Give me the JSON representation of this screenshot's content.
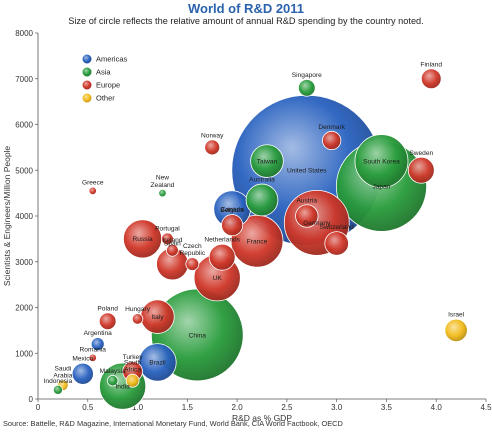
{
  "chart_data": {
    "type": "scatter",
    "title": "World of R&D 2011",
    "subtitle": "Size of circle reflects the relative amount of annual R&D spending by the country noted.",
    "xlabel": "R&D as % GDP",
    "ylabel": "Scientists & Engineers/Million People",
    "xlim": [
      0,
      4.5
    ],
    "ylim": [
      0,
      8000
    ],
    "xticks": [
      "0",
      "0.5",
      "1.0",
      "1.5",
      "2.0",
      "2.5",
      "3.0",
      "3.5",
      "4.0",
      "4.5"
    ],
    "yticks": [
      "0",
      "1000",
      "2000",
      "3000",
      "4000",
      "5000",
      "6000",
      "7000",
      "8000"
    ],
    "grid": false,
    "legend_position": "top-left",
    "regions": [
      {
        "name": "Americas",
        "color": "#2b63c0"
      },
      {
        "name": "Asia",
        "color": "#2a9d3d"
      },
      {
        "name": "Europe",
        "color": "#d0382a"
      },
      {
        "name": "Other",
        "color": "#f2bc1c"
      }
    ],
    "points": [
      {
        "label": "United States",
        "x": 2.7,
        "y": 5000,
        "size": 400,
        "region": "Americas"
      },
      {
        "label": "China",
        "x": 1.6,
        "y": 1400,
        "size": 150,
        "region": "Asia"
      },
      {
        "label": "Japan",
        "x": 3.45,
        "y": 4650,
        "size": 145,
        "region": "Asia"
      },
      {
        "label": "Germany",
        "x": 2.8,
        "y": 3850,
        "size": 75,
        "region": "Europe"
      },
      {
        "label": "South Korea",
        "x": 3.45,
        "y": 5200,
        "size": 50,
        "region": "Asia"
      },
      {
        "label": "France",
        "x": 2.2,
        "y": 3450,
        "size": 48,
        "region": "Europe"
      },
      {
        "label": "UK",
        "x": 1.8,
        "y": 2650,
        "size": 38,
        "region": "Europe"
      },
      {
        "label": "India",
        "x": 0.85,
        "y": 280,
        "size": 38,
        "region": "Asia"
      },
      {
        "label": "Russia",
        "x": 1.05,
        "y": 3500,
        "size": 26,
        "region": "Europe"
      },
      {
        "label": "Brazil",
        "x": 1.2,
        "y": 800,
        "size": 25,
        "region": "Americas"
      },
      {
        "label": "Canada",
        "x": 1.95,
        "y": 4150,
        "size": 24,
        "region": "Americas"
      },
      {
        "label": "Italy",
        "x": 1.2,
        "y": 1800,
        "size": 20,
        "region": "Europe"
      },
      {
        "label": "Taiwan",
        "x": 2.3,
        "y": 5200,
        "size": 19,
        "region": "Asia"
      },
      {
        "label": "Spain",
        "x": 1.35,
        "y": 2950,
        "size": 18,
        "region": "Europe"
      },
      {
        "label": "Australia",
        "x": 2.25,
        "y": 4350,
        "size": 18,
        "region": "Asia"
      },
      {
        "label": "Sweden",
        "x": 3.85,
        "y": 5000,
        "size": 12,
        "region": "Europe"
      },
      {
        "label": "Netherlands",
        "x": 1.85,
        "y": 3100,
        "size": 12,
        "region": "Europe"
      },
      {
        "label": "Switzerland",
        "x": 3.0,
        "y": 3400,
        "size": 10,
        "region": "Europe"
      },
      {
        "label": "Mexico",
        "x": 0.45,
        "y": 550,
        "size": 8,
        "region": "Americas"
      },
      {
        "label": "Austria",
        "x": 2.7,
        "y": 4000,
        "size": 9,
        "region": "Europe"
      },
      {
        "label": "Belgium",
        "x": 1.95,
        "y": 3800,
        "size": 8,
        "region": "Europe"
      },
      {
        "label": "Israel",
        "x": 4.2,
        "y": 1500,
        "size": 9,
        "region": "Other"
      },
      {
        "label": "Finland",
        "x": 3.95,
        "y": 7000,
        "size": 7,
        "region": "Europe"
      },
      {
        "label": "Denmark",
        "x": 2.95,
        "y": 5650,
        "size": 6,
        "region": "Europe"
      },
      {
        "label": "Turkey",
        "x": 0.95,
        "y": 600,
        "size": 7,
        "region": "Europe"
      },
      {
        "label": "Poland",
        "x": 0.7,
        "y": 1700,
        "size": 5,
        "region": "Europe"
      },
      {
        "label": "Singapore",
        "x": 2.7,
        "y": 6800,
        "size": 5,
        "region": "Asia"
      },
      {
        "label": "Norway",
        "x": 1.75,
        "y": 5500,
        "size": 4,
        "region": "Europe"
      },
      {
        "label": "Czech Republic",
        "x": 1.55,
        "y": 2950,
        "size": 3,
        "region": "Europe"
      },
      {
        "label": "Argentina",
        "x": 0.6,
        "y": 1200,
        "size": 3,
        "region": "Americas"
      },
      {
        "label": "Ireland",
        "x": 1.35,
        "y": 3250,
        "size": 2.5,
        "region": "Europe"
      },
      {
        "label": "Portugal",
        "x": 1.3,
        "y": 3500,
        "size": 2.5,
        "region": "Europe"
      },
      {
        "label": "South Africa",
        "x": 0.95,
        "y": 400,
        "size": 3,
        "region": "Other"
      },
      {
        "label": "Hungary",
        "x": 1.0,
        "y": 1750,
        "size": 2,
        "region": "Europe"
      },
      {
        "label": "Saudi Arabia",
        "x": 0.25,
        "y": 300,
        "size": 2,
        "region": "Other"
      },
      {
        "label": "Malaysia",
        "x": 0.75,
        "y": 400,
        "size": 2,
        "region": "Asia"
      },
      {
        "label": "Romania",
        "x": 0.55,
        "y": 900,
        "size": 1,
        "region": "Europe"
      },
      {
        "label": "Indonesia",
        "x": 0.2,
        "y": 200,
        "size": 1.5,
        "region": "Asia"
      },
      {
        "label": "Greece",
        "x": 0.55,
        "y": 4550,
        "size": 1,
        "region": "Europe"
      },
      {
        "label": "New Zealand",
        "x": 1.25,
        "y": 4500,
        "size": 1,
        "region": "Asia"
      }
    ]
  },
  "source_note": "Source: Battelle, R&D Magazine, International Monetary Fund, World Bank, CIA World Factbook, OECD"
}
